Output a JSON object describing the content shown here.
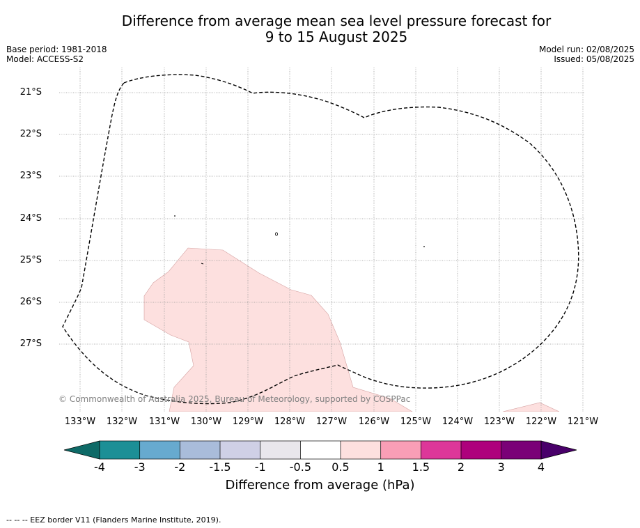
{
  "title": {
    "line1": "Difference from average mean sea level pressure forecast for",
    "line2": "9 to 15 August 2025"
  },
  "meta": {
    "base_period": "Base period: 1981-2018",
    "model": "Model: ACCESS-S2",
    "model_run": "Model run: 02/08/2025",
    "issued": "Issued: 05/08/2025"
  },
  "map": {
    "lat_labels": [
      "21°S",
      "22°S",
      "23°S",
      "24°S",
      "25°S",
      "26°S",
      "27°S"
    ],
    "lon_labels": [
      "133°W",
      "132°W",
      "131°W",
      "130°W",
      "129°W",
      "128°W",
      "127°W",
      "126°W",
      "125°W",
      "124°W",
      "123°W",
      "122°W",
      "121°W"
    ],
    "copyright": "© Commonwealth of Australia 2025, Bureau of Meteorology, supported by COSPPac",
    "anomaly_fill_color": "#fde0df",
    "anomaly_class": "0.5 to 1"
  },
  "colorbar": {
    "ticks": [
      "-4",
      "-3",
      "-2",
      "-1.5",
      "-1",
      "-0.5",
      "0.5",
      "1",
      "1.5",
      "2",
      "3",
      "4"
    ],
    "colors": [
      "#0e6a67",
      "#1c8f96",
      "#67aacf",
      "#a9bcda",
      "#cfd0e6",
      "#e9e7ec",
      "#ffffff",
      "#fde0df",
      "#f99eb6",
      "#dd3799",
      "#ae017c",
      "#7a0177",
      "#49006a"
    ],
    "label": "Difference from average (hPa)"
  },
  "footer": {
    "legend": "--  --  -- EEZ border V11 (Flanders Marine Institute, 2019)."
  }
}
